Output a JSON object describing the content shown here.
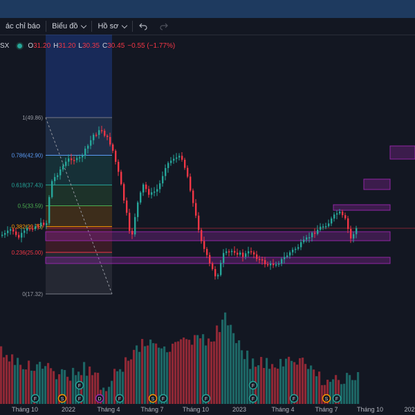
{
  "toolbar": {
    "indicators_label": "ác chỉ báo",
    "chart_label": "Biểu đồ",
    "profile_label": "Hồ sơ"
  },
  "symbol": {
    "ticker_fragment": "SX",
    "ohlc": {
      "open_label": "O",
      "open": "31.20",
      "high_label": "H",
      "high": "31.20",
      "low_label": "L",
      "low": "30.35",
      "close_label": "C",
      "close": "30.45",
      "change": "−0.55 (−1.77%)"
    }
  },
  "fib_levels": [
    {
      "label": "1(49.86)",
      "price": 49.86,
      "color": "#787b86"
    },
    {
      "label": "0.786(42.90)",
      "price": 42.9,
      "color": "#5b9cf6"
    },
    {
      "label": "0.618(37.43)",
      "price": 37.43,
      "color": "#26a69a"
    },
    {
      "label": "0.5(33.59)",
      "price": 33.59,
      "color": "#4caf50"
    },
    {
      "label": "0.382(29.75)",
      "price": 29.75,
      "color": "#ff9800"
    },
    {
      "label": "0.236(25.00)",
      "price": 25.0,
      "color": "#f23645"
    },
    {
      "label": "0(17.32)",
      "price": 17.32,
      "color": "#787b86"
    }
  ],
  "x_axis": {
    "ticks": [
      "Tháng 10",
      "2022",
      "Tháng 4",
      "Tháng 7",
      "Tháng 10",
      "2023",
      "Tháng 4",
      "Tháng 7",
      "Tháng 10",
      "202"
    ]
  },
  "event_markers": {
    "row_top": [
      "F",
      "F",
      "F",
      "F"
    ],
    "row_bottom": [
      "F",
      "S",
      "F",
      "D",
      "F",
      "S",
      "F",
      "F",
      "F",
      "F",
      "S",
      "F"
    ]
  },
  "colors": {
    "up": "#26a69a",
    "down": "#f23645",
    "zone": "#9c27b0",
    "background": "#131722"
  }
}
